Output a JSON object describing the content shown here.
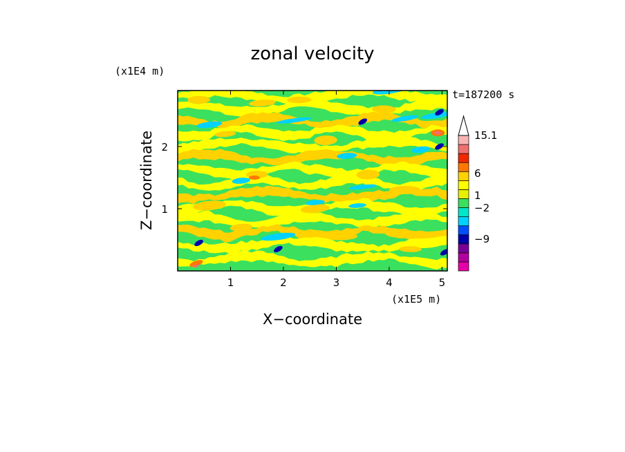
{
  "chart_data": {
    "type": "heatmap",
    "title": "zonal velocity",
    "xlabel": "X−coordinate",
    "ylabel": "Z−coordinate",
    "x_scale_label": "(x1E5 m)",
    "y_scale_label": "(x1E4 m)",
    "time_label": "t=187200 s",
    "xlim": [
      0,
      5.1
    ],
    "ylim": [
      0,
      2.9
    ],
    "x_ticks": [
      "1",
      "2",
      "3",
      "4",
      "5"
    ],
    "y_ticks": [
      "1",
      "2"
    ],
    "colorbar": {
      "labels": [
        "15.1",
        "6",
        "1",
        "−2",
        "−9"
      ],
      "levels": [
        -15,
        -12,
        -9,
        -6,
        -3,
        -2,
        -1,
        0,
        1,
        2,
        3,
        6,
        9,
        12,
        15.1
      ],
      "colors": [
        "#e600a8",
        "#b2009e",
        "#780096",
        "#0000aa",
        "#0050ff",
        "#00d2ff",
        "#00e6c8",
        "#3be05e",
        "#e6f000",
        "#ffff00",
        "#ffd200",
        "#ff7800",
        "#f02800",
        "#f07070",
        "#f8b4b4"
      ]
    }
  }
}
